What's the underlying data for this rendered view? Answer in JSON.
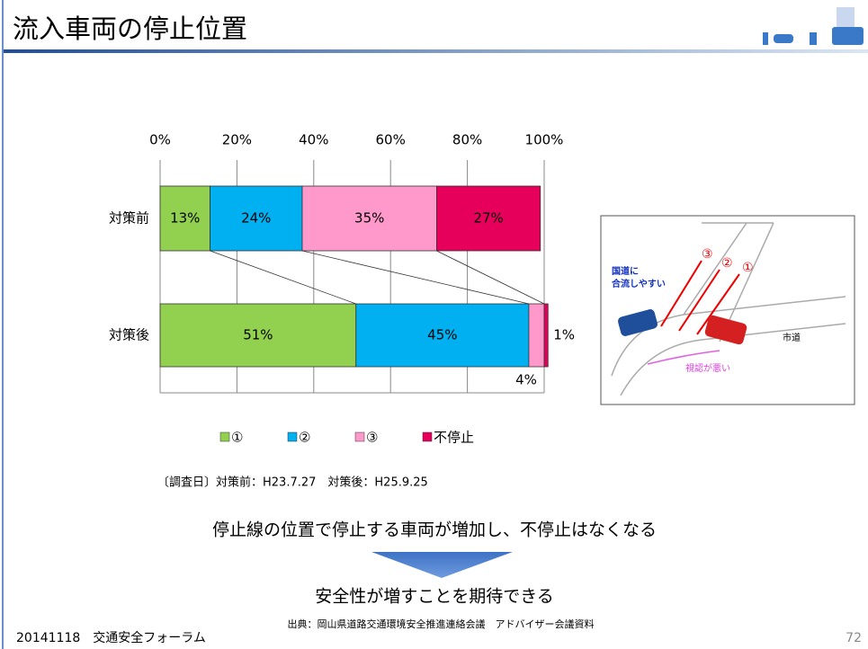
{
  "title": "流入車両の停止位置",
  "chart_data": {
    "type": "bar",
    "orientation": "horizontal",
    "stacked": true,
    "categories": [
      "対策前",
      "対策後"
    ],
    "series": [
      {
        "name": "①",
        "color": "#92d050",
        "values": [
          13,
          51
        ],
        "value_labels": [
          "13%",
          "51%"
        ]
      },
      {
        "name": "②",
        "color": "#00b0f0",
        "values": [
          24,
          45
        ],
        "value_labels": [
          "24%",
          "45%"
        ]
      },
      {
        "name": "③",
        "color": "#ff99cc",
        "values": [
          35,
          4
        ],
        "value_labels": [
          "35%",
          "4%"
        ]
      },
      {
        "name": "不停止",
        "color": "#e6005c",
        "values": [
          27,
          1
        ],
        "value_labels": [
          "27%",
          "1%"
        ]
      }
    ],
    "xlim": [
      0,
      100
    ],
    "xticks": [
      {
        "value": 0,
        "label": "0%"
      },
      {
        "value": 20,
        "label": "20%"
      },
      {
        "value": 40,
        "label": "40%"
      },
      {
        "value": 60,
        "label": "60%"
      },
      {
        "value": 80,
        "label": "80%"
      },
      {
        "value": 100,
        "label": "100%"
      }
    ],
    "grid": true,
    "legend": "bottom"
  },
  "survey_note": "〔調査日〕対策前：H23.7.27　対策後：H25.9.25",
  "conclusion": "停止線の位置で停止する車両が増加し、不停止はなくなる",
  "result": "安全性が増すことを期待できる",
  "source": "出典：岡山県道路交通環境安全推進連絡会議　アドバイザー会議資料",
  "footer": "20141118　交通安全フォーラム",
  "page_number": "72",
  "diagram": {
    "note_left": [
      "国道に",
      "合流しやすい"
    ],
    "road": "市道",
    "note_bottom": "視認が悪い",
    "marks": [
      "③",
      "②",
      "①"
    ]
  }
}
